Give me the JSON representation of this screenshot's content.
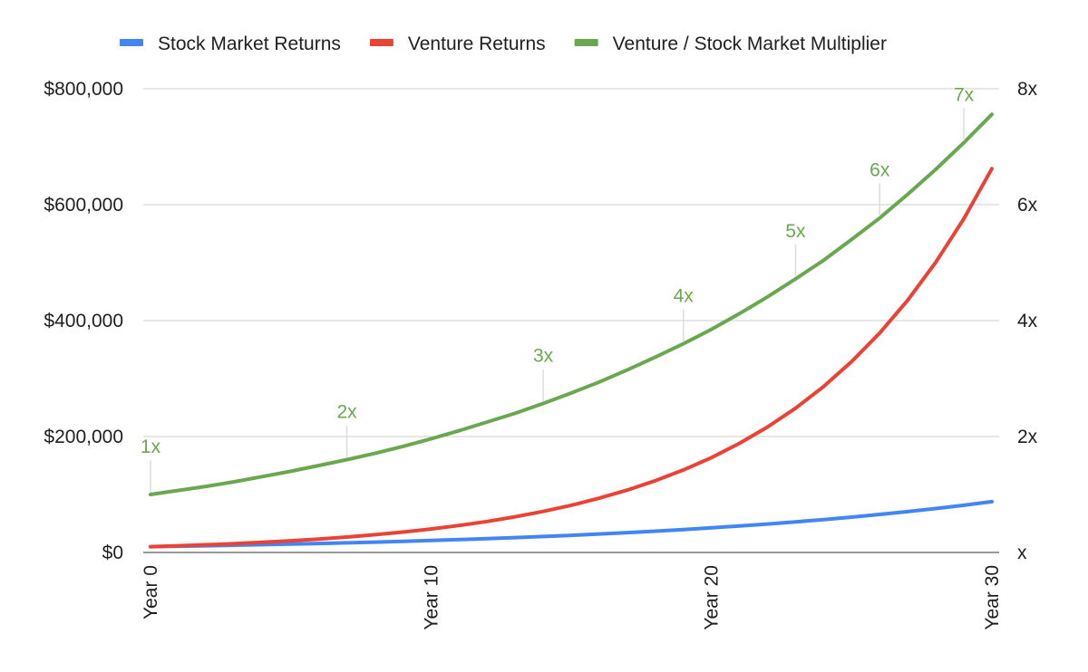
{
  "chart_data": {
    "type": "line",
    "title": "",
    "xlabel": "",
    "ylabel": "",
    "x": [
      0,
      1,
      2,
      3,
      4,
      5,
      6,
      7,
      8,
      9,
      10,
      11,
      12,
      13,
      14,
      15,
      16,
      17,
      18,
      19,
      20,
      21,
      22,
      23,
      24,
      25,
      26,
      27,
      28,
      29,
      30
    ],
    "x_tick_labels": [
      "Year 0",
      "Year 10",
      "Year 20",
      "Year 30"
    ],
    "x_tick_values": [
      0,
      10,
      20,
      30
    ],
    "xlim": [
      0,
      30
    ],
    "y_left": {
      "ylim": [
        0,
        800000
      ],
      "tick_values": [
        0,
        200000,
        400000,
        600000,
        800000
      ],
      "tick_labels": [
        "$0",
        "$200,000",
        "$400,000",
        "$600,000",
        "$800,000"
      ]
    },
    "y_right": {
      "ylim": [
        0,
        8
      ],
      "tick_values": [
        0,
        2,
        4,
        6,
        8
      ],
      "tick_labels": [
        "x",
        "2x",
        "4x",
        "6x",
        "8x"
      ]
    },
    "grid": true,
    "legend_position": "top",
    "series": [
      {
        "name": "Stock Market Returns",
        "color": "#4285f4",
        "axis": "left",
        "values": [
          10000,
          10750,
          11560,
          12430,
          13360,
          14360,
          15430,
          16590,
          17840,
          19180,
          20610,
          22160,
          23830,
          25610,
          27530,
          29600,
          31820,
          34210,
          36770,
          39530,
          42490,
          45680,
          49110,
          52790,
          56750,
          61010,
          65580,
          70500,
          75790,
          81480,
          87590
        ]
      },
      {
        "name": "Venture Returns",
        "color": "#ea4335",
        "axis": "left",
        "values": [
          10000,
          11500,
          13230,
          15210,
          17490,
          20110,
          23130,
          26600,
          30590,
          35180,
          40460,
          46520,
          53500,
          61530,
          70760,
          81370,
          93580,
          107610,
          123750,
          142320,
          163670,
          188220,
          216450,
          248920,
          286250,
          329190,
          378570,
          435360,
          500660,
          575760,
          662120
        ]
      },
      {
        "name": "Venture / Stock Market Multiplier",
        "color": "#6aa84f",
        "axis": "right",
        "values": [
          1.0,
          1.07,
          1.14,
          1.22,
          1.31,
          1.4,
          1.5,
          1.6,
          1.71,
          1.83,
          1.96,
          2.1,
          2.25,
          2.4,
          2.57,
          2.75,
          2.94,
          3.15,
          3.37,
          3.6,
          3.85,
          4.12,
          4.41,
          4.72,
          5.04,
          5.4,
          5.77,
          6.18,
          6.61,
          7.07,
          7.56
        ]
      }
    ],
    "annotations": [
      {
        "series": "Venture / Stock Market Multiplier",
        "x": 0,
        "y": 1.0,
        "label": "1x"
      },
      {
        "series": "Venture / Stock Market Multiplier",
        "x": 7,
        "y": 1.6,
        "label": "2x"
      },
      {
        "series": "Venture / Stock Market Multiplier",
        "x": 14,
        "y": 2.57,
        "label": "3x"
      },
      {
        "series": "Venture / Stock Market Multiplier",
        "x": 19,
        "y": 3.6,
        "label": "4x"
      },
      {
        "series": "Venture / Stock Market Multiplier",
        "x": 23,
        "y": 4.72,
        "label": "5x"
      },
      {
        "series": "Venture / Stock Market Multiplier",
        "x": 26,
        "y": 5.77,
        "label": "6x"
      },
      {
        "series": "Venture / Stock Market Multiplier",
        "x": 29,
        "y": 7.07,
        "label": "7x"
      }
    ]
  }
}
